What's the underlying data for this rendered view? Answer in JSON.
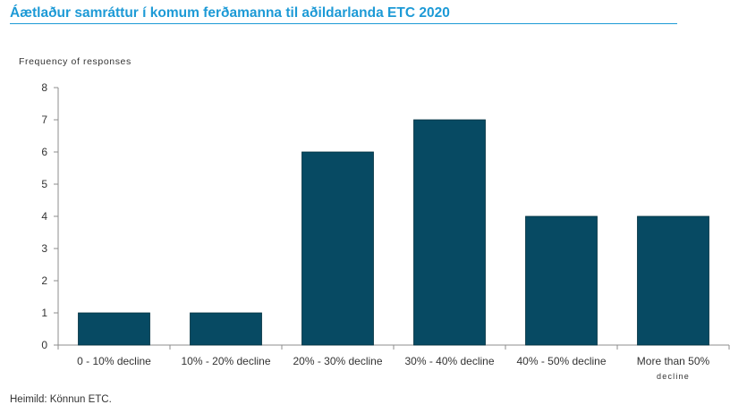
{
  "title": "Áætlaður samráttur í komum ferðamanna til aðildarlanda ETC 2020",
  "source": "Heimild: Könnun ETC.",
  "colors": {
    "title": "#1d9ad6",
    "bar": "#074a63",
    "axis": "#8c8c8c",
    "text": "#333333"
  },
  "chart_data": {
    "type": "bar",
    "title": "",
    "xlabel": "",
    "ylabel": "Frequency of responses",
    "categories": [
      "0 - 10% decline",
      "10% - 20% decline",
      "20% - 30% decline",
      "30% - 40% decline",
      "40% - 50% decline",
      "More than 50% decline"
    ],
    "values": [
      1,
      1,
      6,
      7,
      4,
      4
    ],
    "ylim": [
      0,
      8
    ],
    "yticks": [
      0,
      1,
      2,
      3,
      4,
      5,
      6,
      7,
      8
    ],
    "grid": false,
    "legend": "none"
  }
}
